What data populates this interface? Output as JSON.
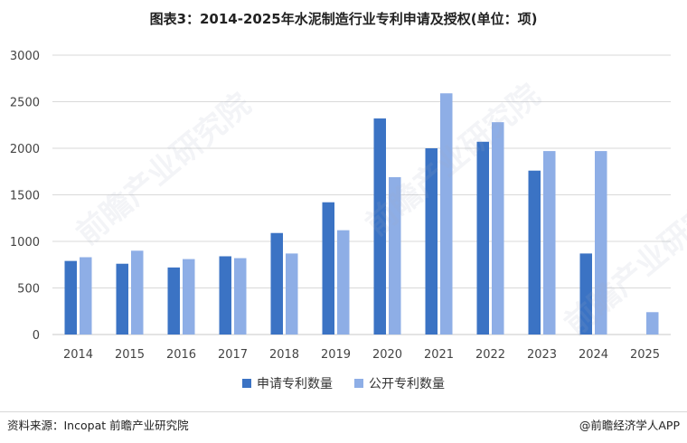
{
  "title": "图表3：2014-2025年水泥制造行业专利申请及授权(单位：项)",
  "watermark_text": "前瞻产业研究院",
  "source_text": "资料来源：Incopat 前瞻产业研究院",
  "credit_text": "@前瞻经济学人APP",
  "colors": {
    "series1": "#3b73c4",
    "series2": "#8eaee6",
    "grid": "#d9d9d9",
    "axis": "#c8c8c8"
  },
  "chart_data": {
    "type": "bar",
    "title": "图表3：2014-2025年水泥制造行业专利申请及授权(单位：项)",
    "xlabel": "",
    "ylabel": "",
    "categories": [
      "2014",
      "2015",
      "2016",
      "2017",
      "2018",
      "2019",
      "2020",
      "2021",
      "2022",
      "2023",
      "2024",
      "2025"
    ],
    "series": [
      {
        "name": "申请专利数量",
        "values": [
          790,
          760,
          720,
          840,
          1090,
          1420,
          2320,
          2000,
          2070,
          1760,
          870,
          0
        ]
      },
      {
        "name": "公开专利数量",
        "values": [
          830,
          900,
          810,
          820,
          870,
          1120,
          1690,
          2590,
          2280,
          1970,
          1970,
          240
        ]
      }
    ],
    "ylim": [
      0,
      3000
    ],
    "yticks": [
      0,
      500,
      1000,
      1500,
      2000,
      2500,
      3000
    ],
    "grid": true,
    "legend_position": "bottom-center"
  }
}
